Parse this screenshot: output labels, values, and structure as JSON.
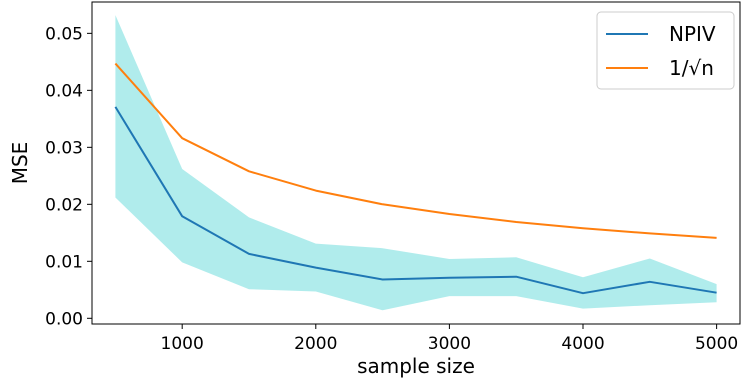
{
  "chart_data": {
    "type": "line",
    "xlabel": "sample size",
    "ylabel": "MSE",
    "xlim": [
      325,
      5175
    ],
    "ylim": [
      -0.001,
      0.0555
    ],
    "x_ticks": [
      {
        "value": 1000,
        "label": "1000"
      },
      {
        "value": 2000,
        "label": "2000"
      },
      {
        "value": 3000,
        "label": "3000"
      },
      {
        "value": 4000,
        "label": "4000"
      },
      {
        "value": 5000,
        "label": "5000"
      }
    ],
    "y_ticks": [
      {
        "value": 0.0,
        "label": "0.00"
      },
      {
        "value": 0.01,
        "label": "0.01"
      },
      {
        "value": 0.02,
        "label": "0.02"
      },
      {
        "value": 0.03,
        "label": "0.03"
      },
      {
        "value": 0.04,
        "label": "0.04"
      },
      {
        "value": 0.05,
        "label": "0.05"
      }
    ],
    "grid": false,
    "legend_position": "top-right",
    "x": [
      500,
      1000,
      1500,
      2000,
      2500,
      3000,
      3500,
      4000,
      4500,
      5000
    ],
    "series": [
      {
        "name": "NPIV",
        "color": "#1f77b4",
        "values": [
          0.0371,
          0.0179,
          0.0113,
          0.0089,
          0.0068,
          0.0071,
          0.0073,
          0.0044,
          0.0064,
          0.0045
        ],
        "band_lower": [
          0.0212,
          0.0098,
          0.0051,
          0.0047,
          0.0014,
          0.0039,
          0.0039,
          0.0017,
          0.0023,
          0.0028
        ],
        "band_upper": [
          0.0532,
          0.0262,
          0.0177,
          0.0131,
          0.0123,
          0.0104,
          0.0107,
          0.0072,
          0.0105,
          0.006
        ],
        "band_color": "#7fe0e0"
      },
      {
        "name": "1/√n",
        "color": "#ff7f0e",
        "values": [
          0.0447,
          0.0316,
          0.0258,
          0.0224,
          0.02,
          0.0183,
          0.0169,
          0.0158,
          0.0149,
          0.0141
        ]
      }
    ]
  }
}
